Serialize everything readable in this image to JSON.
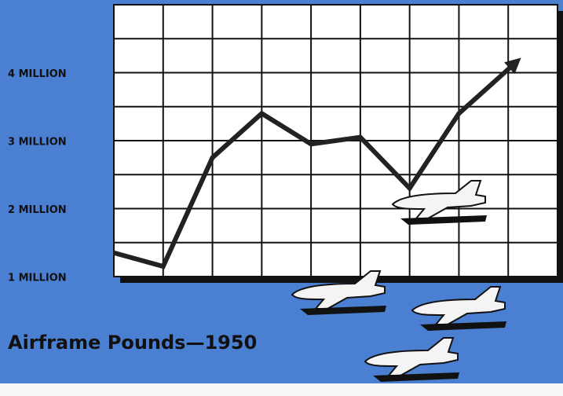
{
  "chart_data": {
    "type": "line",
    "title": "Airframe Pounds—1950",
    "categories": [
      null,
      null,
      null,
      null,
      null,
      null,
      null,
      null,
      null
    ],
    "series": [
      {
        "color": "#222222",
        "values": [
          1350000,
          1150000,
          2750000,
          3400000,
          2950000,
          3050000,
          2300000,
          3400000,
          4050000
        ]
      }
    ],
    "ylim": [
      1000000,
      5000000
    ],
    "yticks": [
      {
        "value": 1000000,
        "label": "1 MILLION"
      },
      {
        "value": 2000000,
        "label": "2 MILLION"
      },
      {
        "value": 3000000,
        "label": "3 MILLION"
      },
      {
        "value": 4000000,
        "label": "4 MILLION"
      }
    ],
    "y_minor_ticks": [
      1500000,
      2500000,
      3500000,
      4500000
    ],
    "grid": true
  }
}
